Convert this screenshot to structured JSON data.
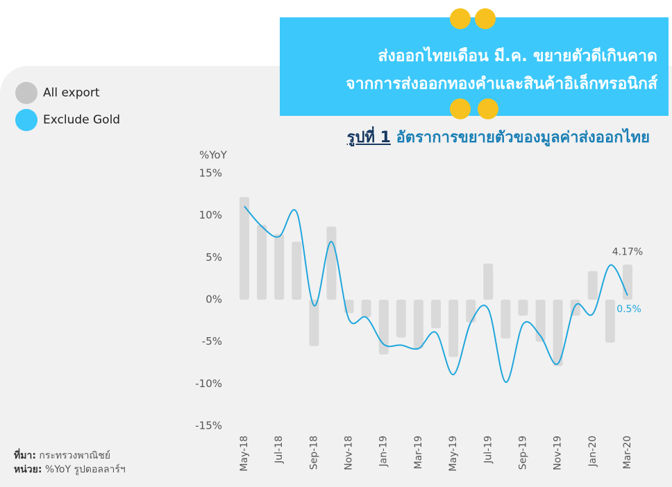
{
  "header": {
    "lines": [
      "ส่งออกไทยเดือน มี.ค. ขยายตัวดีเกินคาด",
      "จากการส่งออกทองคำและสินค้าอิเล็กทรอนิกส์"
    ]
  },
  "figure": {
    "number": "รูปที่ 1",
    "caption": "อัตราการขยายตัวของมูลค่าส่งออกไทย"
  },
  "notes": {
    "source_label": "ที่มา:",
    "source": "กระทรวงพาณิชย์",
    "unit_label": "หน่วย:",
    "unit": "%YoY รูปดอลลาร์ฯ"
  },
  "chart_data": {
    "type": "bar-line",
    "y_label": "%YoY",
    "categories": [
      "May-18",
      null,
      "Jul-18",
      null,
      "Sep-18",
      null,
      "Nov-18",
      null,
      "Jan-19",
      null,
      "Mar-19",
      null,
      "May-19",
      null,
      "Jul-19",
      null,
      "Sep-19",
      null,
      "Nov-19",
      null,
      "Jan-20",
      null,
      "Mar-20"
    ],
    "ylim": [
      -15,
      15
    ],
    "yticks": [
      {
        "value": 15,
        "label": "15%"
      },
      {
        "value": 10,
        "label": "10%"
      },
      {
        "value": 5,
        "label": "5%"
      },
      {
        "value": 0,
        "label": "0%"
      },
      {
        "value": -5,
        "label": "-5%"
      },
      {
        "value": -10,
        "label": "-10%"
      },
      {
        "value": -15,
        "label": "-15%"
      }
    ],
    "legend": "top-left",
    "series": [
      {
        "name": "All export",
        "type": "bar",
        "color": "#d9d9d9",
        "legend_color": "#c6c6c6",
        "values": [
          12.2,
          8.9,
          7.8,
          6.9,
          -5.5,
          8.7,
          -1.6,
          -2.1,
          -6.5,
          -4.5,
          -5.8,
          -3.4,
          -6.8,
          -2.7,
          4.3,
          -4.6,
          -1.9,
          -5.0,
          -7.9,
          -1.9,
          3.4,
          -5.1,
          4.17
        ],
        "value_labels": [
          null,
          null,
          null,
          null,
          null,
          null,
          null,
          null,
          null,
          null,
          null,
          null,
          null,
          null,
          null,
          null,
          null,
          null,
          null,
          null,
          null,
          null,
          "4.17%"
        ]
      },
      {
        "name": "Exclude Gold",
        "type": "line",
        "color": "#1fa6dd",
        "legend_color": "#3cc8fa",
        "values": [
          11.1,
          8.7,
          7.5,
          10.4,
          -0.7,
          6.9,
          -2.3,
          -2.1,
          -5.3,
          -5.4,
          -5.8,
          -3.9,
          -8.9,
          -2.7,
          -1.1,
          -9.8,
          -2.9,
          -4.3,
          -7.6,
          -0.7,
          -1.7,
          4.1,
          0.5
        ],
        "value_labels": [
          null,
          null,
          null,
          null,
          null,
          null,
          null,
          null,
          null,
          null,
          null,
          null,
          null,
          null,
          null,
          null,
          null,
          null,
          null,
          null,
          null,
          null,
          "0.5%"
        ]
      }
    ]
  }
}
